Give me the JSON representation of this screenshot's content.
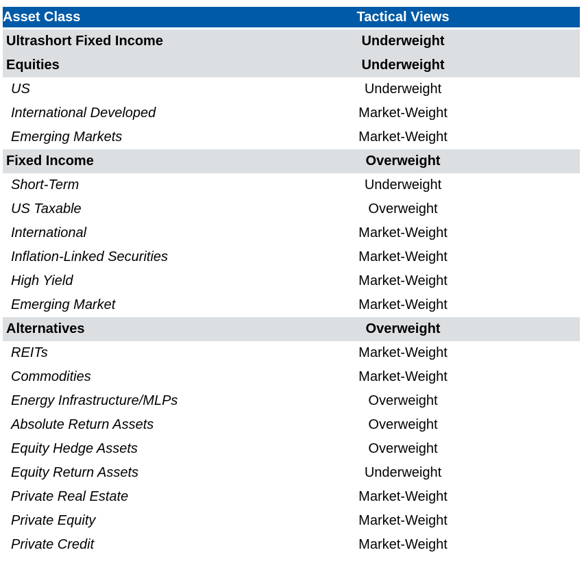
{
  "table": {
    "columns": [
      {
        "label": "Asset Class"
      },
      {
        "label": "Tactical Views"
      }
    ],
    "rows": [
      {
        "label": "Ultrashort Fixed Income",
        "view": "Underweight",
        "type": "section"
      },
      {
        "label": "Equities",
        "view": "Underweight",
        "type": "section"
      },
      {
        "label": "US",
        "view": "Underweight",
        "type": "sub"
      },
      {
        "label": "International Developed",
        "view": "Market-Weight",
        "type": "sub"
      },
      {
        "label": "Emerging Markets",
        "view": "Market-Weight",
        "type": "sub"
      },
      {
        "label": "Fixed Income",
        "view": "Overweight",
        "type": "section"
      },
      {
        "label": "Short-Term",
        "view": "Underweight",
        "type": "sub"
      },
      {
        "label": "US Taxable",
        "view": "Overweight",
        "type": "sub"
      },
      {
        "label": "International",
        "view": "Market-Weight",
        "type": "sub"
      },
      {
        "label": "Inflation-Linked Securities",
        "view": "Market-Weight",
        "type": "sub"
      },
      {
        "label": "High Yield",
        "view": "Market-Weight",
        "type": "sub"
      },
      {
        "label": "Emerging Market",
        "view": "Market-Weight",
        "type": "sub"
      },
      {
        "label": "Alternatives",
        "view": "Overweight",
        "type": "section"
      },
      {
        "label": "REITs",
        "view": "Market-Weight",
        "type": "sub"
      },
      {
        "label": "Commodities",
        "view": "Market-Weight",
        "type": "sub"
      },
      {
        "label": "Energy Infrastructure/MLPs",
        "view": "Overweight",
        "type": "sub"
      },
      {
        "label": "Absolute Return Assets",
        "view": "Overweight",
        "type": "sub"
      },
      {
        "label": "Equity Hedge Assets",
        "view": "Overweight",
        "type": "sub"
      },
      {
        "label": "Equity Return Assets",
        "view": "Underweight",
        "type": "sub"
      },
      {
        "label": "Private Real Estate",
        "view": "Market-Weight",
        "type": "sub"
      },
      {
        "label": "Private Equity",
        "view": "Market-Weight",
        "type": "sub"
      },
      {
        "label": "Private Credit",
        "view": "Market-Weight",
        "type": "sub"
      }
    ],
    "colors": {
      "header_bg": "#005AA7",
      "header_text": "#FFFFFF",
      "section_row_bg": "#DCDFE2",
      "body_text": "#000000",
      "page_bg": "#FFFFFF"
    }
  }
}
